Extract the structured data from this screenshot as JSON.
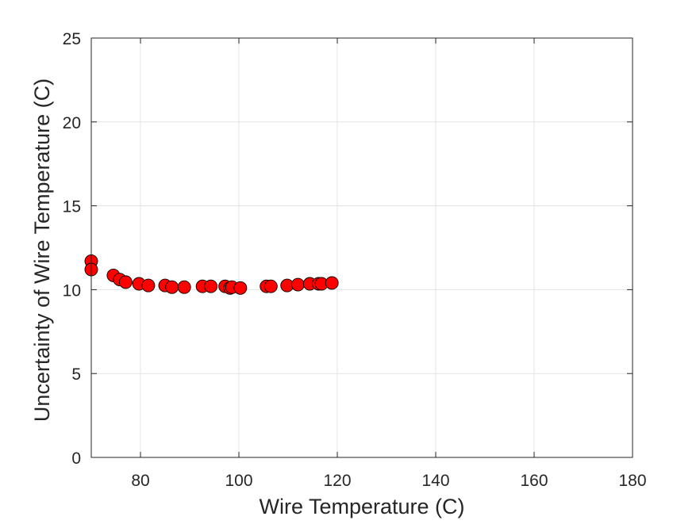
{
  "chart_data": {
    "type": "scatter",
    "title": "",
    "xlabel": "Wire Temperature (C)",
    "ylabel": "Uncertainty of Wire Temperature (C)",
    "xlim": [
      70,
      180
    ],
    "ylim": [
      0,
      25
    ],
    "xticks": [
      80,
      100,
      120,
      140,
      160,
      180
    ],
    "yticks": [
      0,
      5,
      10,
      15,
      20,
      25
    ],
    "grid": true,
    "marker_color": "#ff0000",
    "marker_edge_color": "#000000",
    "points": [
      {
        "x": 70.0,
        "y": 11.7
      },
      {
        "x": 70.0,
        "y": 11.2
      },
      {
        "x": 74.5,
        "y": 10.85
      },
      {
        "x": 75.8,
        "y": 10.6
      },
      {
        "x": 77.0,
        "y": 10.45
      },
      {
        "x": 79.7,
        "y": 10.35
      },
      {
        "x": 81.6,
        "y": 10.25
      },
      {
        "x": 85.0,
        "y": 10.25
      },
      {
        "x": 86.4,
        "y": 10.15
      },
      {
        "x": 88.9,
        "y": 10.15
      },
      {
        "x": 92.6,
        "y": 10.2
      },
      {
        "x": 94.3,
        "y": 10.2
      },
      {
        "x": 97.2,
        "y": 10.2
      },
      {
        "x": 98.2,
        "y": 10.1
      },
      {
        "x": 98.6,
        "y": 10.15
      },
      {
        "x": 100.3,
        "y": 10.1
      },
      {
        "x": 105.6,
        "y": 10.2
      },
      {
        "x": 106.5,
        "y": 10.2
      },
      {
        "x": 109.8,
        "y": 10.25
      },
      {
        "x": 112.0,
        "y": 10.3
      },
      {
        "x": 114.4,
        "y": 10.35
      },
      {
        "x": 116.2,
        "y": 10.35
      },
      {
        "x": 116.8,
        "y": 10.35
      },
      {
        "x": 118.9,
        "y": 10.4
      }
    ]
  }
}
